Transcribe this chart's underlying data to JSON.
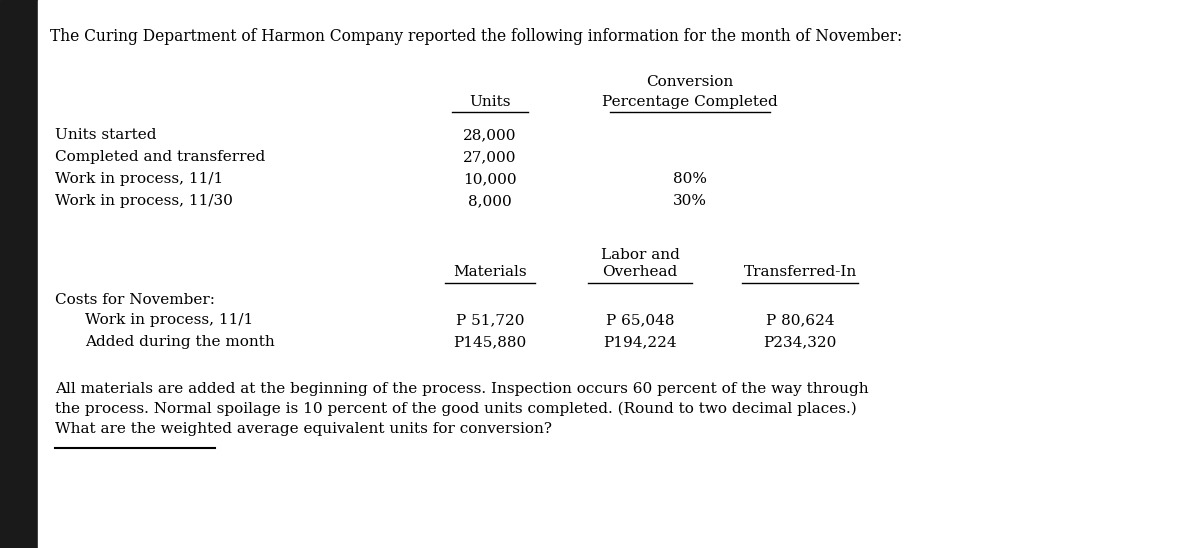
{
  "bg_color": "#f0f0f0",
  "content_bg": "#ffffff",
  "border_color": "#000000",
  "title": "The Curing Department of Harmon Company reported the following information for the month of November:",
  "header_units": "Units",
  "header_conversion": "Conversion",
  "header_pct": "Percentage Completed",
  "row1_label": "Units started",
  "row1_units": "28,000",
  "row2_label": "Completed and transferred",
  "row2_units": "27,000",
  "row3_label": "Work in process, 11/1",
  "row3_units": "10,000",
  "row3_pct": "80%",
  "row4_label": "Work in process, 11/30",
  "row4_units": "8,000",
  "row4_pct": "30%",
  "cost_header_materials": "Materials",
  "cost_header_labor": "Labor and",
  "cost_header_overhead": "Overhead",
  "cost_header_transferred": "Transferred-In",
  "cost_section_label": "Costs for November:",
  "cost_row1_label": "Work in process, 11/1",
  "cost_row1_mat": "P 51,720",
  "cost_row1_labor": "P 65,048",
  "cost_row1_trans": "P 80,624",
  "cost_row2_label": "Added during the month",
  "cost_row2_mat": "P145,880",
  "cost_row2_labor": "P194,224",
  "cost_row2_trans": "P234,320",
  "footer_line1": "All materials are added at the beginning of the process. Inspection occurs 60 percent of the way through",
  "footer_line2": "the process. Normal spoilage is 10 percent of the good units completed. (Round to two decimal places.)",
  "footer_line3": "What are the weighted average equivalent units for conversion?",
  "font_size_title": 11.2,
  "font_size_body": 11.0,
  "font_size_footer": 11.0,
  "left_bar_color": "#1a1a1a",
  "left_bar_width": 0.032
}
